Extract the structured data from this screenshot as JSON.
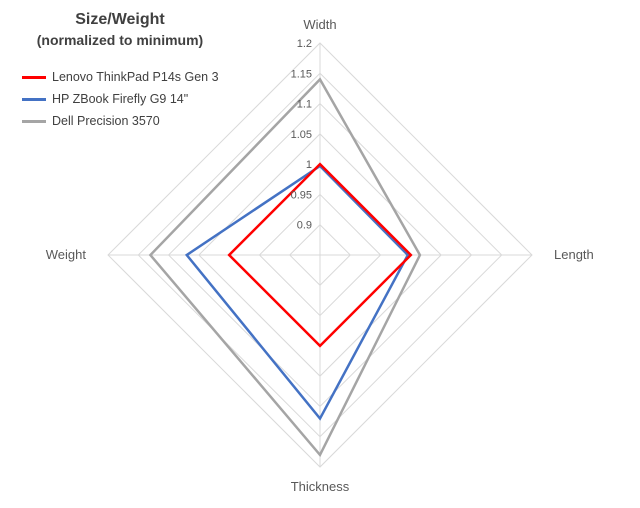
{
  "chart_data": {
    "type": "radar",
    "title": "Size/Weight",
    "subtitle": "(normalized to minimum)",
    "axes": [
      "Width",
      "Length",
      "Thickness",
      "Weight"
    ],
    "rlim": [
      0.85,
      1.2
    ],
    "ticks": [
      "0.9",
      "0.95",
      "1",
      "1.05",
      "1.1",
      "1.15",
      "1.2"
    ],
    "tick_values": [
      0.9,
      0.95,
      1.0,
      1.05,
      1.1,
      1.15,
      1.2
    ],
    "gridline_values": [
      0.9,
      0.95,
      1.0,
      1.05,
      1.1,
      1.15,
      1.2
    ],
    "legend_position": "top-left",
    "series": [
      {
        "name": "Lenovo ThinkPad P14s Gen 3",
        "color": "#ff0000",
        "values": [
          1.0,
          1.0,
          1.0,
          1.0
        ]
      },
      {
        "name": "HP ZBook Firefly G9 14\"",
        "color": "#4472c4",
        "values": [
          0.997,
          0.995,
          1.12,
          1.07
        ]
      },
      {
        "name": "Dell Precision 3570",
        "color": "#a5a5a5",
        "values": [
          1.14,
          1.015,
          1.18,
          1.13
        ]
      }
    ]
  }
}
